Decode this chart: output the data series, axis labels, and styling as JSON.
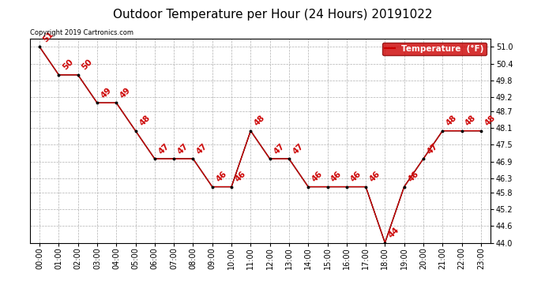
{
  "title": "Outdoor Temperature per Hour (24 Hours) 20191022",
  "copyright_text": "Copyright 2019 Cartronics.com",
  "legend_label": "Temperature  (°F)",
  "hours": [
    0,
    1,
    2,
    3,
    4,
    5,
    6,
    7,
    8,
    9,
    10,
    11,
    12,
    13,
    14,
    15,
    16,
    17,
    18,
    19,
    20,
    21,
    22,
    23
  ],
  "temps": [
    51,
    50,
    50,
    49,
    49,
    48,
    47,
    47,
    47,
    46,
    46,
    48,
    47,
    47,
    46,
    46,
    46,
    46,
    44,
    46,
    47,
    48,
    48,
    48
  ],
  "xlabels": [
    "00:00",
    "01:00",
    "02:00",
    "03:00",
    "04:00",
    "05:00",
    "06:00",
    "07:00",
    "08:00",
    "09:00",
    "10:00",
    "11:00",
    "12:00",
    "13:00",
    "14:00",
    "15:00",
    "16:00",
    "17:00",
    "18:00",
    "19:00",
    "20:00",
    "21:00",
    "22:00",
    "23:00"
  ],
  "ylim": [
    44.0,
    51.3
  ],
  "yticks": [
    44.0,
    44.6,
    45.2,
    45.8,
    46.3,
    46.9,
    47.5,
    48.1,
    48.7,
    49.2,
    49.8,
    50.4,
    51.0
  ],
  "line_color": "#cc0000",
  "marker_color": "black",
  "label_color": "#cc0000",
  "bg_color": "#ffffff",
  "grid_color": "#b0b0b0",
  "title_fontsize": 11,
  "tick_fontsize": 7,
  "anno_fontsize": 7.5,
  "copyright_fontsize": 6,
  "legend_fontsize": 7.5
}
